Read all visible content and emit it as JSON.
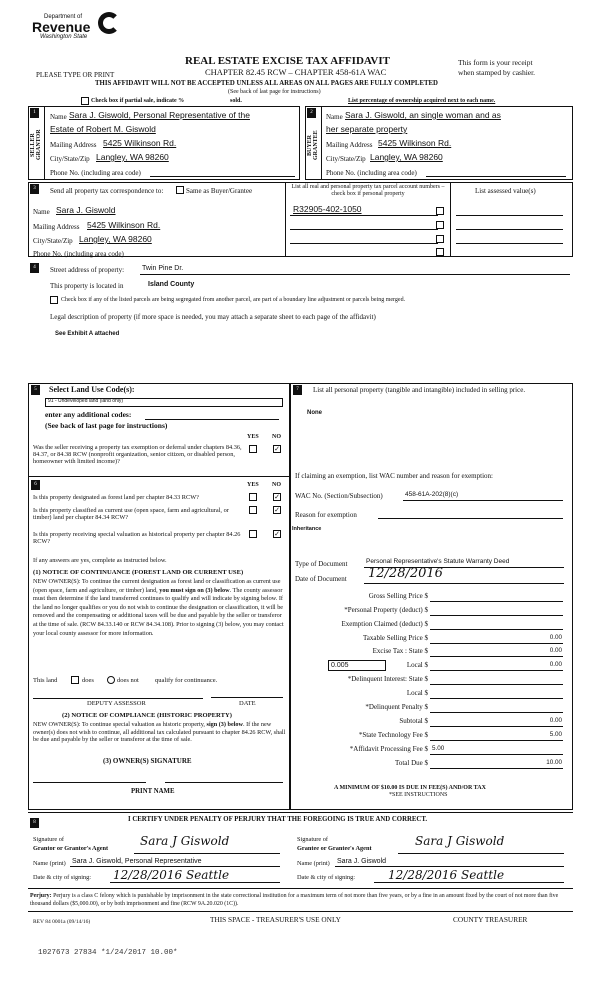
{
  "header": {
    "logo_dept": "Department of",
    "logo_name": "Revenue",
    "logo_state": "Washington State",
    "title": "REAL ESTATE EXCISE TAX AFFIDAVIT",
    "chapter": "CHAPTER 82.45 RCW – CHAPTER 458-61A WAC",
    "please": "PLEASE TYPE OR PRINT",
    "receipt1": "This form is your receipt",
    "receipt2": "when stamped by cashier.",
    "warning": "THIS AFFIDAVIT WILL NOT BE ACCEPTED UNLESS ALL AREAS ON ALL PAGES ARE FULLY COMPLETED",
    "see_back": "(See back of last page for instructions)",
    "partial": "Check box if partial sale, indicate %",
    "sold": "sold.",
    "list_pct": "List percentage of ownership acquired next to each name."
  },
  "seller": {
    "num": "1",
    "side": "SELLER GRANTOR",
    "name_label": "Name",
    "name1": "Sara J. Giswold, Personal Representative of the",
    "name2": "Estate of Robert M. Giswold",
    "mail_label": "Mailing Address",
    "mail": "5425 Wilkinson Rd.",
    "city_label": "City/State/Zip",
    "city": "Langley, WA 98260",
    "phone_label": "Phone No. (including area code)"
  },
  "buyer": {
    "num": "2",
    "side": "BUYER GRANTEE",
    "name_label": "Name",
    "name1": "Sara J. Giswold, an single woman and as",
    "name2": "her separate property",
    "mail_label": "Mailing Address",
    "mail": "5425 Wilkinson Rd.",
    "city_label": "City/State/Zip",
    "city": "Langley, WA 98260",
    "phone_label": "Phone No. (including area code)"
  },
  "sec3": {
    "num": "3",
    "send": "Send all property tax correspondence to:",
    "same": "Same as Buyer/Grantee",
    "name_label": "Name",
    "name": "Sara J. Giswold",
    "mail_label": "Mailing Address",
    "mail": "5425 Wilkinson Rd.",
    "city_label": "City/State/Zip",
    "city": "Langley, WA 98260",
    "phone_label": "Phone No. (including area code)",
    "parcel_hdr": "List all real and personal property tax parcel account numbers – check box if personal property",
    "assessed_hdr": "List assessed value(s)",
    "parcels": [
      "R32905-402-1050",
      "",
      "",
      ""
    ]
  },
  "sec4": {
    "num": "4",
    "street_label": "Street address of property:",
    "street": "Twin Pine Dr.",
    "located_label": "This property is located in",
    "located": "Island County",
    "segregate": "Check box if any of the listed parcels are being segregated from another parcel, are part of a boundary line adjustment or parcels being merged.",
    "legal": "Legal description of property (if more space is needed, you may attach a separate sheet to each page of the affidavit)",
    "legal_value": "See Exhibit A attached"
  },
  "sec5": {
    "num": "5",
    "select": "Select Land Use Code(s):",
    "code": "91 - Undeveloped land (land only)",
    "additional": "enter any additional codes:",
    "see_back": "(See back of last page for instructions)",
    "yes": "YES",
    "no": "NO",
    "q": "Was the seller receiving a property tax exemption or deferral under chapters 84.36, 84.37, or 84.38 RCW (nonprofit organization, senior citizen, or disabled person, homeowner with limited income)?",
    "answer": "NO"
  },
  "sec6": {
    "num": "6",
    "yes": "YES",
    "no": "NO",
    "questions": [
      {
        "q": "Is this property designated as forest land per chapter 84.33 RCW?",
        "answer": "NO"
      },
      {
        "q": "Is this property classified as current use (open space, farm and agricultural, or timber) land per chapter 84.34 RCW?",
        "answer": "NO"
      },
      {
        "q": "Is this property receiving special valuation as historical property per chapter 84.26 RCW?",
        "answer": "NO"
      }
    ],
    "if_yes": "If any answers are yes, complete as instructed below.",
    "n1_title": "(1) NOTICE OF CONTINUANCE (FOREST LAND OR CURRENT USE)",
    "n1_a": "NEW OWNER(S): To continue the current designation as forest land or classification as current use (open space, farm and agriculture, or timber) land, ",
    "n1_bold": "you must sign on (3) below",
    "n1_b": ". The county assessor must then determine if the land transferred continues to qualify and will indicate by signing below. If the land no longer qualifies or you do not wish to continue the designation or classification, it will be removed and the compensating or additional taxes will be due and payable by the seller or transferor at the time of sale. (RCW 84.33.140 or RCW 84.34.108). Prior to signing (3) below, you may contact your local county assessor for more information.",
    "this_land": "This land",
    "does": "does",
    "does_not": "does not",
    "qualify": "qualify for continuance.",
    "deputy": "DEPUTY ASSESSOR",
    "date": "DATE",
    "n2_title": "(2) NOTICE OF COMPLIANCE (HISTORIC PROPERTY)",
    "n2_a": "NEW OWNER(S): To continue special valuation as historic property, ",
    "n2_bold": "sign (3) below",
    "n2_b": ". If the new owner(s) does not wish to continue, all additional tax calculated pursuant to chapter 84.26 RCW, shall be due and payable by the seller or transferor at the time of sale.",
    "n3_title": "(3) OWNER(S) SIGNATURE",
    "print_name": "PRINT NAME"
  },
  "sec7": {
    "num": "7",
    "list": "List all  personal property (tangible and intangible) included in selling price.",
    "value": "None",
    "claim": "If claiming an exemption, list WAC number and reason for exemption:",
    "wac_label": "WAC No. (Section/Subsection)",
    "wac": "458-61A-202(8)(c)",
    "reason_label": "Reason for exemption",
    "reason": "Inheritance",
    "type_label": "Type of Document",
    "type": "Personal Representative's Statute Warranty Deed",
    "date_label": "Date of Document",
    "date": "12/28/2016",
    "rate": "0.005",
    "amounts": [
      {
        "label": "Gross Selling Price $",
        "value": ""
      },
      {
        "label": "*Personal Property (deduct) $",
        "value": ""
      },
      {
        "label": "Exemption Claimed (deduct) $",
        "value": ""
      },
      {
        "label": "Taxable Selling Price $",
        "value": "0.00"
      },
      {
        "label": "Excise Tax : State $",
        "value": "0.00"
      },
      {
        "label": "Local $",
        "value": "0.00"
      },
      {
        "label": "*Delinquent Interest: State $",
        "value": ""
      },
      {
        "label": "Local $",
        "value": ""
      },
      {
        "label": "*Delinquent Penalty $",
        "value": ""
      },
      {
        "label": "Subtotal $",
        "value": "0.00"
      },
      {
        "label": "*State Technology Fee $",
        "value": "5.00"
      },
      {
        "label": "*Affidavit Processing Fee $",
        "value": "5.00"
      },
      {
        "label": "Total Due $",
        "value": "10.00"
      }
    ],
    "minimum": "A MINIMUM OF $10.00 IS DUE IN FEE(S) AND/OR TAX",
    "see_instr": "*SEE INSTRUCTIONS"
  },
  "sec8": {
    "num": "8",
    "certify": "I CERTIFY UNDER PENALTY OF PERJURY THAT THE FOREGOING IS TRUE AND CORRECT.",
    "sig_of": "Signature of",
    "grantor_agent": "Grantor or Grantor's Agent",
    "grantee_agent": "Grantee or Grantee's Agent",
    "signature": "Sara J Giswold",
    "name_label": "Name (print)",
    "grantor_name": "Sara J. Giswold, Personal Representative",
    "grantee_name": "Sara J. Giswold",
    "date_label": "Date & city of signing:",
    "grantor_date": "12/28/2016 Seattle",
    "grantee_date": "12/28/2016 Seattle"
  },
  "footer": {
    "perjury_bold": "Perjury:",
    "perjury": " Perjury is a class C felony which is punishable by imprisonment in the state correctional institution for a maximum term of not more than five years, or by a fine in an amount fixed by the court of not more than five thousand dollars ($5,000.00), or by both imprisonment and fine (RCW 9A.20.020 (1C)).",
    "rev": "REV 84 0001a (09/14/16)",
    "treasurer_space": "THIS SPACE - TREASURER'S USE ONLY",
    "county_treasurer": "COUNTY TREASURER",
    "stamp": "1027673 27834 *1/24/2017 10.00*"
  }
}
